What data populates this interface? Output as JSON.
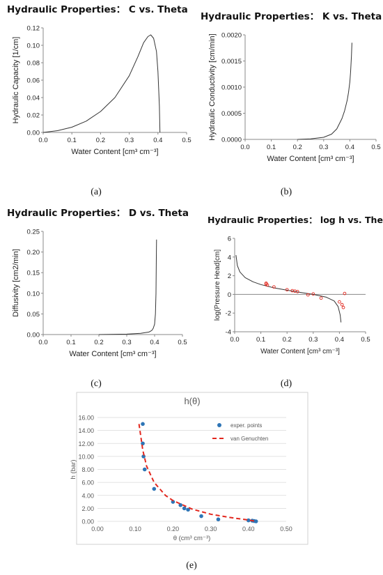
{
  "chart_data": [
    {
      "id": "a",
      "type": "line",
      "title": "Hydraulic Properties： C vs. Theta",
      "xlabel": "Water Content [cm³ cm⁻³]",
      "ylabel": "Hydraulic Capacity [1/cm]",
      "caption": "(a)",
      "xlim": [
        0,
        0.5
      ],
      "ylim": [
        0,
        0.12
      ],
      "xticks": [
        "0.0",
        "0.1",
        "0.2",
        "0.3",
        "0.4",
        "0.5"
      ],
      "yticks": [
        "0.00",
        "0.02",
        "0.04",
        "0.06",
        "0.08",
        "0.10",
        "0.12"
      ],
      "series": [
        {
          "x": [
            0.0,
            0.05,
            0.1,
            0.15,
            0.2,
            0.25,
            0.3,
            0.33,
            0.35,
            0.365,
            0.375,
            0.385,
            0.395,
            0.4,
            0.405,
            0.407
          ],
          "y": [
            0.0,
            0.002,
            0.006,
            0.013,
            0.024,
            0.04,
            0.065,
            0.087,
            0.103,
            0.11,
            0.112,
            0.108,
            0.093,
            0.07,
            0.03,
            0.0
          ]
        }
      ]
    },
    {
      "id": "b",
      "type": "line",
      "title": "Hydraulic Properties： K vs. Theta",
      "xlabel": "Water Content [cm³ cm⁻³]",
      "ylabel": "Hydraulic Conductivity [cm/min]",
      "caption": "(b)",
      "xlim": [
        0,
        0.5
      ],
      "ylim": [
        0,
        0.002
      ],
      "xticks": [
        "0.0",
        "0.1",
        "0.2",
        "0.3",
        "0.4",
        "0.5"
      ],
      "yticks": [
        "0.0000",
        "0.0005",
        "0.0010",
        "0.0015",
        "0.0020"
      ],
      "series": [
        {
          "x": [
            0.2,
            0.25,
            0.3,
            0.33,
            0.35,
            0.37,
            0.38,
            0.39,
            0.395,
            0.4,
            0.403,
            0.406,
            0.408
          ],
          "y": [
            0.0,
            1e-05,
            4e-05,
            0.0001,
            0.0002,
            0.0004,
            0.00055,
            0.00075,
            0.0009,
            0.0011,
            0.0013,
            0.0016,
            0.00185
          ]
        }
      ]
    },
    {
      "id": "c",
      "type": "line",
      "title": "Hydraulic Properties： D vs. Theta",
      "xlabel": "Water Content [cm³ cm⁻³]",
      "ylabel": "Diffusivity [cm2/min]",
      "caption": "(c)",
      "xlim": [
        0,
        0.5
      ],
      "ylim": [
        0,
        0.25
      ],
      "xticks": [
        "0.0",
        "0.1",
        "0.2",
        "0.3",
        "0.4",
        "0.5"
      ],
      "yticks": [
        "0.00",
        "0.05",
        "0.10",
        "0.15",
        "0.20",
        "0.25"
      ],
      "series": [
        {
          "x": [
            0.2,
            0.3,
            0.35,
            0.38,
            0.39,
            0.395,
            0.4,
            0.403,
            0.405,
            0.406,
            0.407
          ],
          "y": [
            0.0,
            0.001,
            0.003,
            0.006,
            0.01,
            0.015,
            0.025,
            0.05,
            0.1,
            0.17,
            0.23
          ]
        }
      ]
    },
    {
      "id": "d",
      "type": "line",
      "title": "Hydraulic Properties： log h vs. Theta",
      "xlabel": "Water Content [cm³ cm⁻³]",
      "ylabel": "log(Pressure Head[cm]",
      "caption": "(d)",
      "xlim": [
        0,
        0.5
      ],
      "ylim": [
        -4,
        6
      ],
      "xticks": [
        "0.0",
        "0.1",
        "0.2",
        "0.3",
        "0.4",
        "0.5"
      ],
      "yticks": [
        "-4",
        "-2",
        "0",
        "2",
        "4",
        "6"
      ],
      "series": [
        {
          "kind": "line",
          "x": [
            0.005,
            0.01,
            0.02,
            0.04,
            0.07,
            0.1,
            0.15,
            0.2,
            0.25,
            0.3,
            0.35,
            0.38,
            0.395,
            0.403,
            0.406
          ],
          "y": [
            4.2,
            3.1,
            2.4,
            1.8,
            1.35,
            1.05,
            0.7,
            0.45,
            0.22,
            0.0,
            -0.3,
            -0.7,
            -1.3,
            -2.2,
            -3.0
          ]
        },
        {
          "kind": "scatter",
          "x": [
            0.12,
            0.12,
            0.125,
            0.15,
            0.2,
            0.22,
            0.23,
            0.24,
            0.28,
            0.3,
            0.33,
            0.4,
            0.41,
            0.415,
            0.42
          ],
          "y": [
            1.2,
            1.1,
            1.0,
            0.8,
            0.5,
            0.4,
            0.35,
            0.3,
            -0.05,
            0.05,
            -0.4,
            -0.8,
            -1.1,
            -1.4,
            0.1
          ]
        }
      ]
    },
    {
      "id": "e",
      "type": "scatter",
      "title": "h(θ)",
      "xlabel": "θ (cm³ cm⁻³)",
      "ylabel": "h (bar)",
      "caption": "(e)",
      "xlim": [
        0,
        0.5
      ],
      "ylim": [
        0,
        16
      ],
      "xticks": [
        "0.00",
        "0.10",
        "0.20",
        "0.30",
        "0.40",
        "0.50"
      ],
      "yticks": [
        "0.00",
        "2.00",
        "4.00",
        "6.00",
        "8.00",
        "10.00",
        "12.00",
        "14.00",
        "16.00"
      ],
      "legend": [
        "exper. points",
        "van Genuchten"
      ],
      "legend_position": "top-right",
      "grid": true,
      "series": [
        {
          "name": "exper. points",
          "kind": "scatter",
          "color": "#2e75b6",
          "x": [
            0.12,
            0.12,
            0.122,
            0.125,
            0.15,
            0.2,
            0.22,
            0.23,
            0.24,
            0.275,
            0.32,
            0.4,
            0.41,
            0.415,
            0.42
          ],
          "y": [
            15.0,
            12.0,
            10.0,
            8.0,
            5.0,
            3.0,
            2.5,
            2.0,
            1.8,
            0.8,
            0.3,
            0.15,
            0.1,
            0.05,
            0.0
          ]
        },
        {
          "name": "van Genuchten",
          "kind": "line",
          "color": "#e2271e",
          "dashed": true,
          "x": [
            0.11,
            0.115,
            0.12,
            0.13,
            0.15,
            0.18,
            0.2,
            0.25,
            0.3,
            0.35,
            0.4,
            0.42
          ],
          "y": [
            15.0,
            13.0,
            11.0,
            8.5,
            6.0,
            4.0,
            3.2,
            1.9,
            1.1,
            0.6,
            0.2,
            0.0
          ]
        }
      ]
    }
  ]
}
